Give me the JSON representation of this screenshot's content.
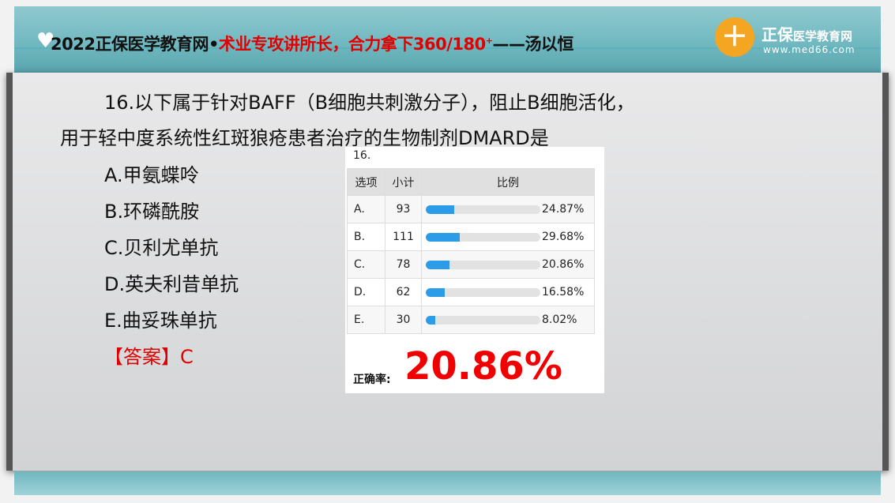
{
  "header": {
    "title_black_1": "2022正保医学教育网•",
    "title_red": "术业专攻讲所长，合力拿下360/180",
    "title_sup": "+",
    "title_black_2": "——汤以恒",
    "brand": "正保",
    "brand_small": "医学教育网",
    "url": "www.med66.com"
  },
  "question": {
    "line1": "16.以下属于针对BAFF（B细胞共刺激分子），阻止B细胞活化，",
    "line2": "用于轻中度系统性红斑狼疮患者治疗的生物制剂DMARD是",
    "options": [
      "A.甲氨蝶呤",
      "B.环磷酰胺",
      "C.贝利尤单抗",
      "D.英夫利昔单抗",
      "E.曲妥珠单抗"
    ],
    "answer": "【答案】C"
  },
  "stats": {
    "qnum": "16.",
    "headers": [
      "选项",
      "小计",
      "比例"
    ],
    "rows": [
      {
        "option": "A.",
        "count": "93",
        "percent": 24.87,
        "label": "24.87%"
      },
      {
        "option": "B.",
        "count": "111",
        "percent": 29.68,
        "label": "29.68%"
      },
      {
        "option": "C.",
        "count": "78",
        "percent": 20.86,
        "label": "20.86%"
      },
      {
        "option": "D.",
        "count": "62",
        "percent": 16.58,
        "label": "16.58%"
      },
      {
        "option": "E.",
        "count": "30",
        "percent": 8.02,
        "label": "8.02%"
      }
    ],
    "rate_label": "正确率:",
    "rate": "20.86%",
    "bar_color": "#2c9ce8"
  }
}
